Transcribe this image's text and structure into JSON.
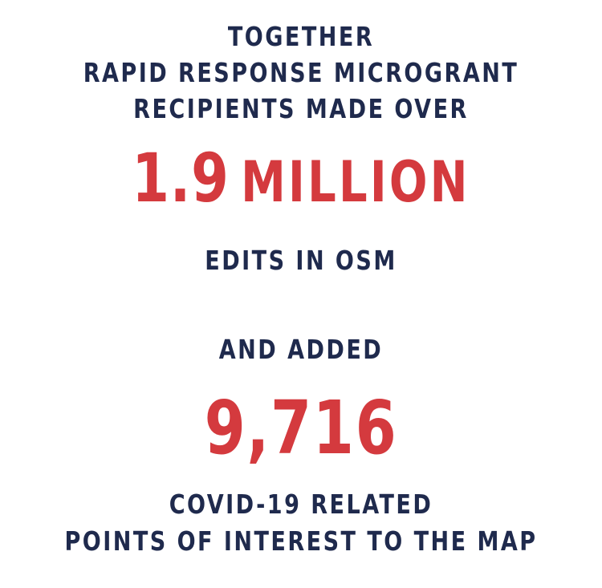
{
  "intro": {
    "line1": "TOGETHER",
    "line2": "RAPID RESPONSE MICROGRANT",
    "line3": "RECIPIENTS MADE OVER"
  },
  "edits": {
    "number": "1.9",
    "unit": "MILLION",
    "label": "EDITS IN OSM"
  },
  "added": {
    "label": "AND ADDED",
    "number": "9,716",
    "line1": "COVID-19 RELATED",
    "line2": "POINTS OF INTEREST TO THE MAP"
  },
  "colors": {
    "navy": "#1f2a4d",
    "red": "#d43a3e",
    "background": "#ffffff"
  }
}
